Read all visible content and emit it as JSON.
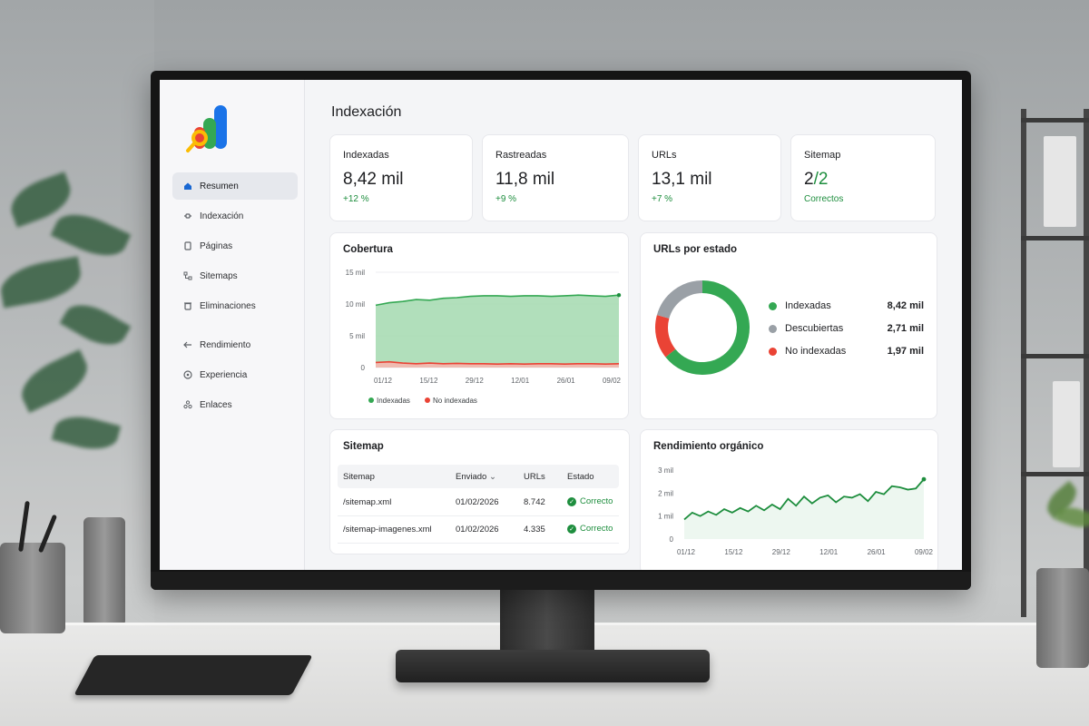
{
  "app": {
    "page_title": "Indexación"
  },
  "sidebar": {
    "items": [
      {
        "label": "Resumen",
        "icon": "home-icon",
        "active": true
      },
      {
        "label": "Indexación",
        "icon": "indexing-icon",
        "active": false
      },
      {
        "label": "Páginas",
        "icon": "pages-icon",
        "active": false
      },
      {
        "label": "Sitemaps",
        "icon": "sitemap-icon",
        "active": false
      },
      {
        "label": "Eliminaciones",
        "icon": "removal-icon",
        "active": false
      },
      {
        "label": "Rendimiento",
        "icon": "performance-icon",
        "active": false
      },
      {
        "label": "Experiencia",
        "icon": "experience-icon",
        "active": false
      },
      {
        "label": "Enlaces",
        "icon": "links-icon",
        "active": false
      }
    ]
  },
  "kpis": [
    {
      "label": "Indexadas",
      "value": "8,42 mil",
      "delta": "+12 %"
    },
    {
      "label": "Rastreadas",
      "value": "11,8 mil",
      "delta": "+9 %"
    },
    {
      "label": "URLs",
      "value": "13,1 mil",
      "delta": "+7 %"
    },
    {
      "label": "Sitemap",
      "value_main": "2",
      "value_accent": "/2",
      "delta": "Correctos"
    }
  ],
  "coverage": {
    "title": "Cobertura",
    "chart_data": {
      "type": "area",
      "title": "Cobertura",
      "x_ticks": [
        "01/12",
        "15/12",
        "29/12",
        "12/01",
        "26/01",
        "09/02"
      ],
      "y_ticks": [
        "15 mil",
        "10 mil",
        "5 mil",
        "0"
      ],
      "ylim": [
        0,
        15000
      ],
      "series": [
        {
          "name": "Indexadas",
          "color": "#34a853",
          "values": [
            9800,
            10200,
            10400,
            10700,
            10600,
            10900,
            11000,
            11200,
            11300,
            11300,
            11200,
            11300,
            11300,
            11200,
            11300,
            11400,
            11300,
            11200,
            11400
          ]
        },
        {
          "name": "No indexadas",
          "color": "#ea4335",
          "values": [
            800,
            900,
            700,
            600,
            700,
            600,
            650,
            600,
            600,
            550,
            600,
            550,
            600,
            600,
            550,
            600,
            600,
            550,
            600
          ]
        }
      ],
      "legend_position": "bottom-left",
      "grid": true
    }
  },
  "status": {
    "title": "URLs por estado",
    "chart_data": {
      "type": "pie",
      "title": "URLs por estado",
      "slices": [
        {
          "label": "Indexadas",
          "value": 8420,
          "display": "8,42 mil",
          "color": "#34a853"
        },
        {
          "label": "Descubiertas",
          "value": 2710,
          "display": "2,71 mil",
          "color": "#9aa0a6"
        },
        {
          "label": "No indexadas",
          "value": 1970,
          "display": "1,97 mil",
          "color": "#ea4335"
        }
      ],
      "legend_position": "right"
    }
  },
  "sitemap_table": {
    "title": "Sitemap",
    "columns": [
      "Sitemap",
      "Enviado",
      "URLs",
      "Estado"
    ],
    "sort_indicator": "⌄",
    "rows": [
      {
        "sitemap": "/sitemap.xml",
        "sent": "01/02/2026",
        "urls": "8.742",
        "status": "Correcto"
      },
      {
        "sitemap": "/sitemap-imagenes.xml",
        "sent": "01/02/2026",
        "urls": "4.335",
        "status": "Correcto"
      }
    ]
  },
  "organic": {
    "title": "Rendimiento orgánico",
    "chart_data": {
      "type": "line",
      "title": "Rendimiento orgánico",
      "x_ticks": [
        "01/12",
        "15/12",
        "29/12",
        "12/01",
        "26/01",
        "09/02"
      ],
      "y_ticks": [
        "3 mil",
        "2 mil",
        "1 mil",
        "0"
      ],
      "ylim": [
        0,
        3000
      ],
      "series": [
        {
          "color": "#1e8e3e",
          "values": [
            850,
            1150,
            1000,
            1200,
            1050,
            1300,
            1150,
            1350,
            1200,
            1450,
            1250,
            1500,
            1300,
            1750,
            1450,
            1850,
            1550,
            1800,
            1900,
            1600,
            1850,
            1800,
            1950,
            1650,
            2050,
            1950,
            2300,
            2250,
            2150,
            2200,
            2600
          ]
        }
      ],
      "grid": false
    }
  }
}
